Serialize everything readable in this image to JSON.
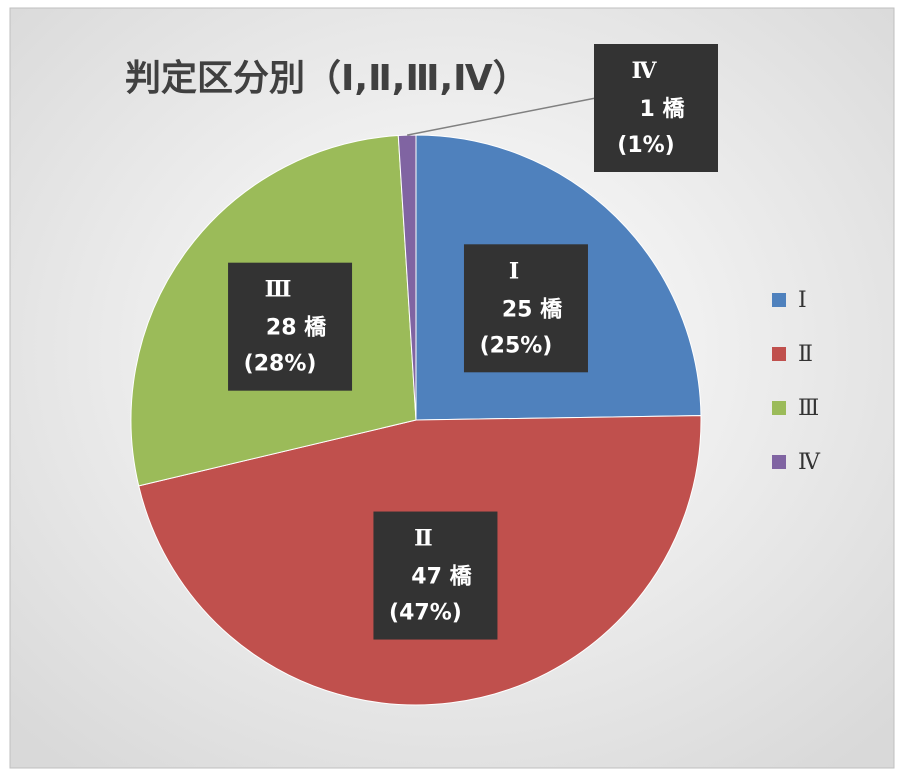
{
  "chart_data": {
    "type": "pie",
    "title": "判定区分別（Ⅰ,Ⅱ,Ⅲ,Ⅳ）",
    "categories": [
      "Ⅰ",
      "Ⅱ",
      "Ⅲ",
      "Ⅳ"
    ],
    "values": [
      25,
      47,
      28,
      1
    ],
    "value_labels": [
      "25 橋",
      "47 橋",
      "28 橋",
      "1 橋"
    ],
    "percent_labels": [
      "(25%)",
      "(47%)",
      "(28%)",
      "(1%)"
    ],
    "colors": [
      "#4f81bd",
      "#c0504d",
      "#9bbb59",
      "#8064a2"
    ],
    "legend": "right"
  }
}
